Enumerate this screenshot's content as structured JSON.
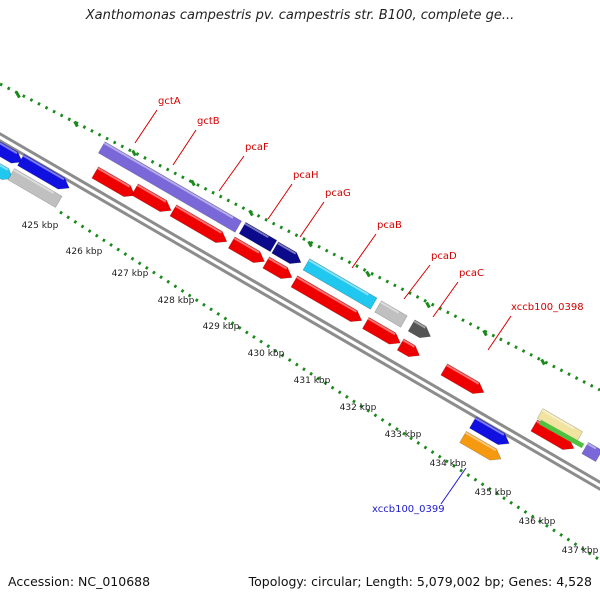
{
  "title": "Xanthomonas campestris pv. campestris str. B100, complete ge...",
  "footer": {
    "accession": "Accession: NC_010688",
    "summary": "Topology: circular; Length: 5,079,002 bp; Genes: 4,528"
  },
  "colors": {
    "background": "#ffffff",
    "backbone": "#8c8c8c",
    "tick": "#1a8a1a",
    "label_red": "#d20000",
    "label_blue": "#1a1ad0",
    "cds_red": "#ee0000",
    "medium_purple": "#7b68d8",
    "navy": "#0a0a8a",
    "cyan": "#20c8f0",
    "light_gray": "#c0c0c0",
    "dark_gray": "#555555",
    "blue": "#1010e0",
    "orange": "#f59a10",
    "khaki": "#f0e4a0",
    "green": "#50c040"
  },
  "scale_ticks": [
    {
      "label": "425 kbp"
    },
    {
      "label": "426 kbp"
    },
    {
      "label": "427 kbp"
    },
    {
      "label": "428 kbp"
    },
    {
      "label": "429 kbp"
    },
    {
      "label": "430 kbp"
    },
    {
      "label": "431 kbp"
    },
    {
      "label": "432 kbp"
    },
    {
      "label": "433 kbp"
    },
    {
      "label": "434 kbp"
    },
    {
      "label": "435 kbp"
    },
    {
      "label": "436 kbp"
    },
    {
      "label": "437 kbp"
    }
  ],
  "gene_labels": [
    {
      "name": "gctA",
      "color": "label_red"
    },
    {
      "name": "gctB",
      "color": "label_red"
    },
    {
      "name": "pcaF",
      "color": "label_red"
    },
    {
      "name": "pcaH",
      "color": "label_red"
    },
    {
      "name": "pcaG",
      "color": "label_red"
    },
    {
      "name": "pcaB",
      "color": "label_red"
    },
    {
      "name": "pcaD",
      "color": "label_red"
    },
    {
      "name": "pcaC",
      "color": "label_red"
    },
    {
      "name": "xccb100_0398",
      "color": "label_red"
    },
    {
      "name": "xccb100_0399",
      "color": "label_blue"
    }
  ]
}
